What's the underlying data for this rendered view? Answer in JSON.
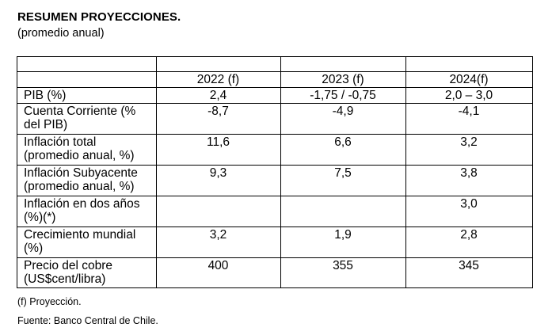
{
  "title": "RESUMEN PROYECCIONES.",
  "subtitle": "(promedio anual)",
  "table": {
    "headers": [
      "",
      "2022 (f)",
      "2023 (f)",
      "2024(f)"
    ],
    "rows": [
      {
        "label": "PIB (%)",
        "values": [
          "2,4",
          "-1,75 / -0,75",
          "2,0 – 3,0"
        ]
      },
      {
        "label": "Cuenta Corriente (% del PIB)",
        "values": [
          "-8,7",
          "-4,9",
          "-4,1"
        ]
      },
      {
        "label": "Inflación total (promedio anual, %)",
        "values": [
          "11,6",
          "6,6",
          "3,2"
        ]
      },
      {
        "label": "Inflación Subyacente (promedio anual, %)",
        "values": [
          "9,3",
          "7,5",
          "3,8"
        ]
      },
      {
        "label": "Inflación en dos años (%)(*)",
        "values": [
          "",
          "",
          "3,0"
        ]
      },
      {
        "label": "Crecimiento mundial (%)",
        "values": [
          "3,2",
          "1,9",
          "2,8"
        ]
      },
      {
        "label": "Precio del cobre (US$cent/libra)",
        "values": [
          "400",
          "355",
          "345"
        ]
      }
    ]
  },
  "footnote": "(f) Proyección.",
  "source": "Fuente: Banco Central de Chile."
}
